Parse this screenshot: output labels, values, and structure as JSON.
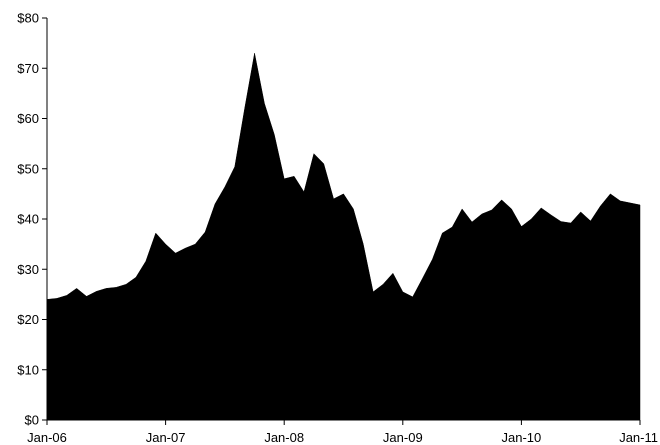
{
  "chart_data": {
    "type": "area",
    "title": "",
    "xlabel": "",
    "ylabel": "",
    "grid": false,
    "legend": "none",
    "fill_color": "#000000",
    "ylim": [
      0,
      80
    ],
    "y_ticks": [
      "$0",
      "$10",
      "$20",
      "$30",
      "$40",
      "$50",
      "$60",
      "$70",
      "$80"
    ],
    "y_tick_values": [
      0,
      10,
      20,
      30,
      40,
      50,
      60,
      70,
      80
    ],
    "x_ticks": [
      "Jan-06",
      "Jan-07",
      "Jan-08",
      "Jan-09",
      "Jan-10",
      "Jan-11"
    ],
    "x_tick_values": [
      "2006-01",
      "2007-01",
      "2008-01",
      "2009-01",
      "2010-01",
      "2011-01"
    ],
    "x": [
      "2006-01",
      "2006-02",
      "2006-03",
      "2006-04",
      "2006-05",
      "2006-06",
      "2006-07",
      "2006-08",
      "2006-09",
      "2006-10",
      "2006-11",
      "2006-12",
      "2007-01",
      "2007-02",
      "2007-03",
      "2007-04",
      "2007-05",
      "2007-06",
      "2007-07",
      "2007-08",
      "2007-09",
      "2007-10",
      "2007-11",
      "2007-12",
      "2008-01",
      "2008-02",
      "2008-03",
      "2008-04",
      "2008-05",
      "2008-06",
      "2008-07",
      "2008-08",
      "2008-09",
      "2008-10",
      "2008-11",
      "2008-12",
      "2009-01",
      "2009-02",
      "2009-03",
      "2009-04",
      "2009-05",
      "2009-06",
      "2009-07",
      "2009-08",
      "2009-09",
      "2009-10",
      "2009-11",
      "2009-12",
      "2010-01",
      "2010-02",
      "2010-03",
      "2010-04",
      "2010-05",
      "2010-06",
      "2010-07",
      "2010-08",
      "2010-09",
      "2010-10",
      "2010-11",
      "2010-12",
      "2011-01"
    ],
    "values": [
      24,
      24.2,
      24.8,
      26.2,
      24.6,
      25.6,
      26.2,
      26.4,
      27,
      28.4,
      31.6,
      37.2,
      35,
      33.2,
      34.2,
      35,
      37.4,
      43,
      46.4,
      50.4,
      62,
      73,
      63,
      56.8,
      48,
      48.5,
      45.4,
      53,
      51,
      44,
      45,
      42,
      35,
      25.5,
      27,
      29.2,
      25.5,
      24.5,
      28.2,
      32,
      37.2,
      38.4,
      42,
      39.4,
      41,
      41.8,
      43.8,
      42,
      38.5,
      40,
      42.2,
      40.8,
      39.5,
      39.2,
      41.4,
      39.6,
      42.6,
      45,
      43.6,
      43.2,
      42.8
    ]
  }
}
